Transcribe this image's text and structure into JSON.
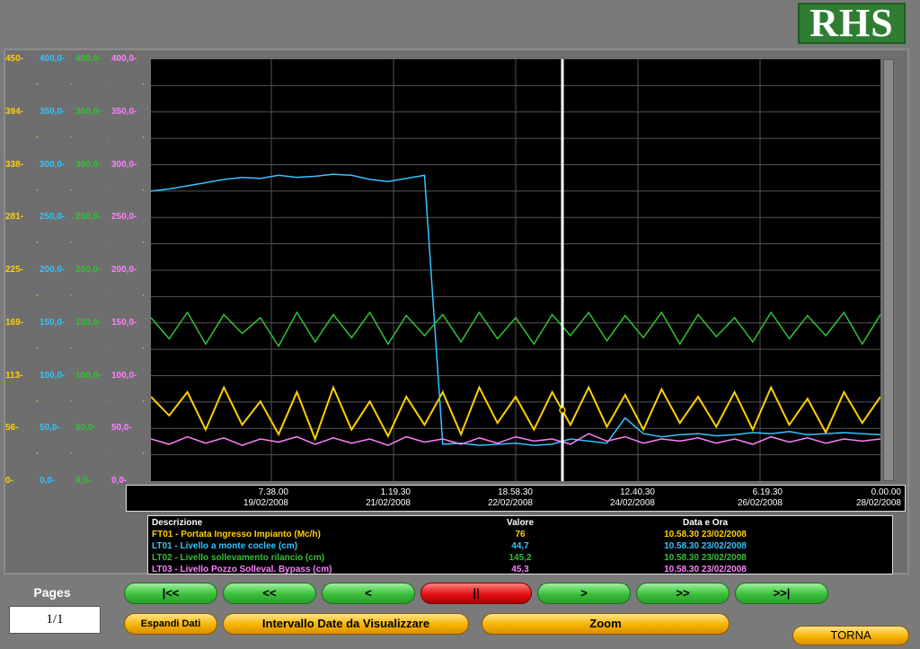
{
  "logo": {
    "text": "RHS"
  },
  "colors": {
    "ft01": "#ffd000",
    "lt01": "#33c4ff",
    "lt02": "#33c233",
    "lt03": "#ff80ff",
    "cursor": "#ffffff",
    "grid": "#555555"
  },
  "axes": [
    {
      "id": "ft01",
      "ticks": [
        "450",
        "394",
        "338",
        "281",
        "225",
        "169",
        "113",
        "56",
        "0"
      ]
    },
    {
      "id": "lt01",
      "ticks": [
        "400,0",
        "350,0",
        "300,0",
        "250,0",
        "200,0",
        "150,0",
        "100,0",
        "50,0",
        "0,0"
      ]
    },
    {
      "id": "lt02",
      "ticks": [
        "400,0",
        "350,0",
        "300,0",
        "250,0",
        "200,0",
        "150,0",
        "100,0",
        "50,0",
        "0,0"
      ]
    },
    {
      "id": "lt03",
      "ticks": [
        "400,0",
        "350,0",
        "300,0",
        "250,0",
        "200,0",
        "150,0",
        "100,0",
        "50,0",
        "0,0"
      ]
    }
  ],
  "x_ticks": [
    {
      "time": "7.38.00",
      "date": "19/02/2008"
    },
    {
      "time": "1.19.30",
      "date": "21/02/2008"
    },
    {
      "time": "18.58.30",
      "date": "22/02/2008"
    },
    {
      "time": "12.40.30",
      "date": "24/02/2008"
    },
    {
      "time": "6.19.30",
      "date": "26/02/2008"
    },
    {
      "time": "0.00.00",
      "date": "28/02/2008"
    }
  ],
  "chart_data": {
    "type": "line",
    "x_range": [
      "17/02/2008",
      "28/02/2008"
    ],
    "ylim": [
      0,
      400
    ],
    "ylim_ft01": [
      0,
      450
    ],
    "cursor": {
      "time": "10.58.30",
      "date": "23/02/2008"
    },
    "grid": true,
    "series": [
      {
        "name": "FT01 - Portata Ingresso Impianto (Mc/h)",
        "color": "#ffd000",
        "scale": 450,
        "values": [
          90,
          70,
          95,
          55,
          100,
          60,
          85,
          50,
          95,
          45,
          100,
          55,
          85,
          48,
          90,
          60,
          95,
          50,
          100,
          62,
          90,
          55,
          95,
          60,
          100,
          58,
          92,
          55,
          98,
          62,
          90,
          58,
          95,
          55,
          100,
          60,
          88,
          52,
          95,
          62,
          90
        ]
      },
      {
        "name": "LT01 - Livello a monte coclee (cm)",
        "color": "#33c4ff",
        "scale": 400,
        "values": [
          275,
          277,
          280,
          283,
          286,
          288,
          287,
          290,
          288,
          289,
          291,
          290,
          286,
          284,
          287,
          290,
          35,
          36,
          34,
          35,
          36,
          34,
          35,
          40,
          38,
          36,
          60,
          45,
          42,
          44,
          45,
          43,
          44,
          46,
          45,
          47,
          44,
          45,
          46,
          45,
          44
        ]
      },
      {
        "name": "LT02 - Livello sollevamento rilancio (cm)",
        "color": "#33c233",
        "scale": 400,
        "values": [
          155,
          135,
          160,
          130,
          158,
          140,
          155,
          128,
          160,
          132,
          158,
          136,
          160,
          130,
          157,
          138,
          158,
          132,
          160,
          135,
          155,
          130,
          158,
          138,
          160,
          133,
          157,
          136,
          160,
          130,
          158,
          137,
          155,
          132,
          160,
          135,
          157,
          138,
          160,
          130,
          158
        ]
      },
      {
        "name": "LT03 - Livello Pozzo Solleval. Bypass (cm)",
        "color": "#ff80ff",
        "scale": 400,
        "values": [
          40,
          35,
          42,
          36,
          41,
          34,
          40,
          37,
          42,
          35,
          41,
          36,
          40,
          34,
          42,
          37,
          40,
          35,
          41,
          36,
          42,
          38,
          40,
          35,
          45,
          38,
          42,
          36,
          40,
          38,
          41,
          36,
          40,
          35,
          42,
          37,
          41,
          36,
          40,
          38,
          40
        ]
      }
    ]
  },
  "legend": {
    "headers": {
      "desc": "Descrizione",
      "value": "Valore",
      "datetime": "Data e Ora"
    },
    "rows": [
      {
        "desc": "FT01 - Portata Ingresso Impianto (Mc/h)",
        "value": "76",
        "datetime": "10.58.30 23/02/2008"
      },
      {
        "desc": "LT01 - Livello a monte coclee (cm)",
        "value": "44,7",
        "datetime": "10.58.30 23/02/2008"
      },
      {
        "desc": "LT02 - Livello sollevamento rilancio (cm)",
        "value": "145,2",
        "datetime": "10.58.30 23/02/2008"
      },
      {
        "desc": "LT03 - Livello Pozzo Solleval. Bypass (cm)",
        "value": "45,3",
        "datetime": "10.58.30 23/02/2008"
      }
    ]
  },
  "pages": {
    "label": "Pages",
    "value": "1/1"
  },
  "nav": {
    "first": "|<<",
    "prev_page": "<<",
    "prev": "<",
    "pause": "||",
    "next": ">",
    "next_page": ">>",
    "last": ">>|"
  },
  "actions": {
    "expand": "Espandi Dati",
    "interval": "Intervallo Date da Visualizzare",
    "zoom": "Zoom",
    "back": "TORNA"
  }
}
